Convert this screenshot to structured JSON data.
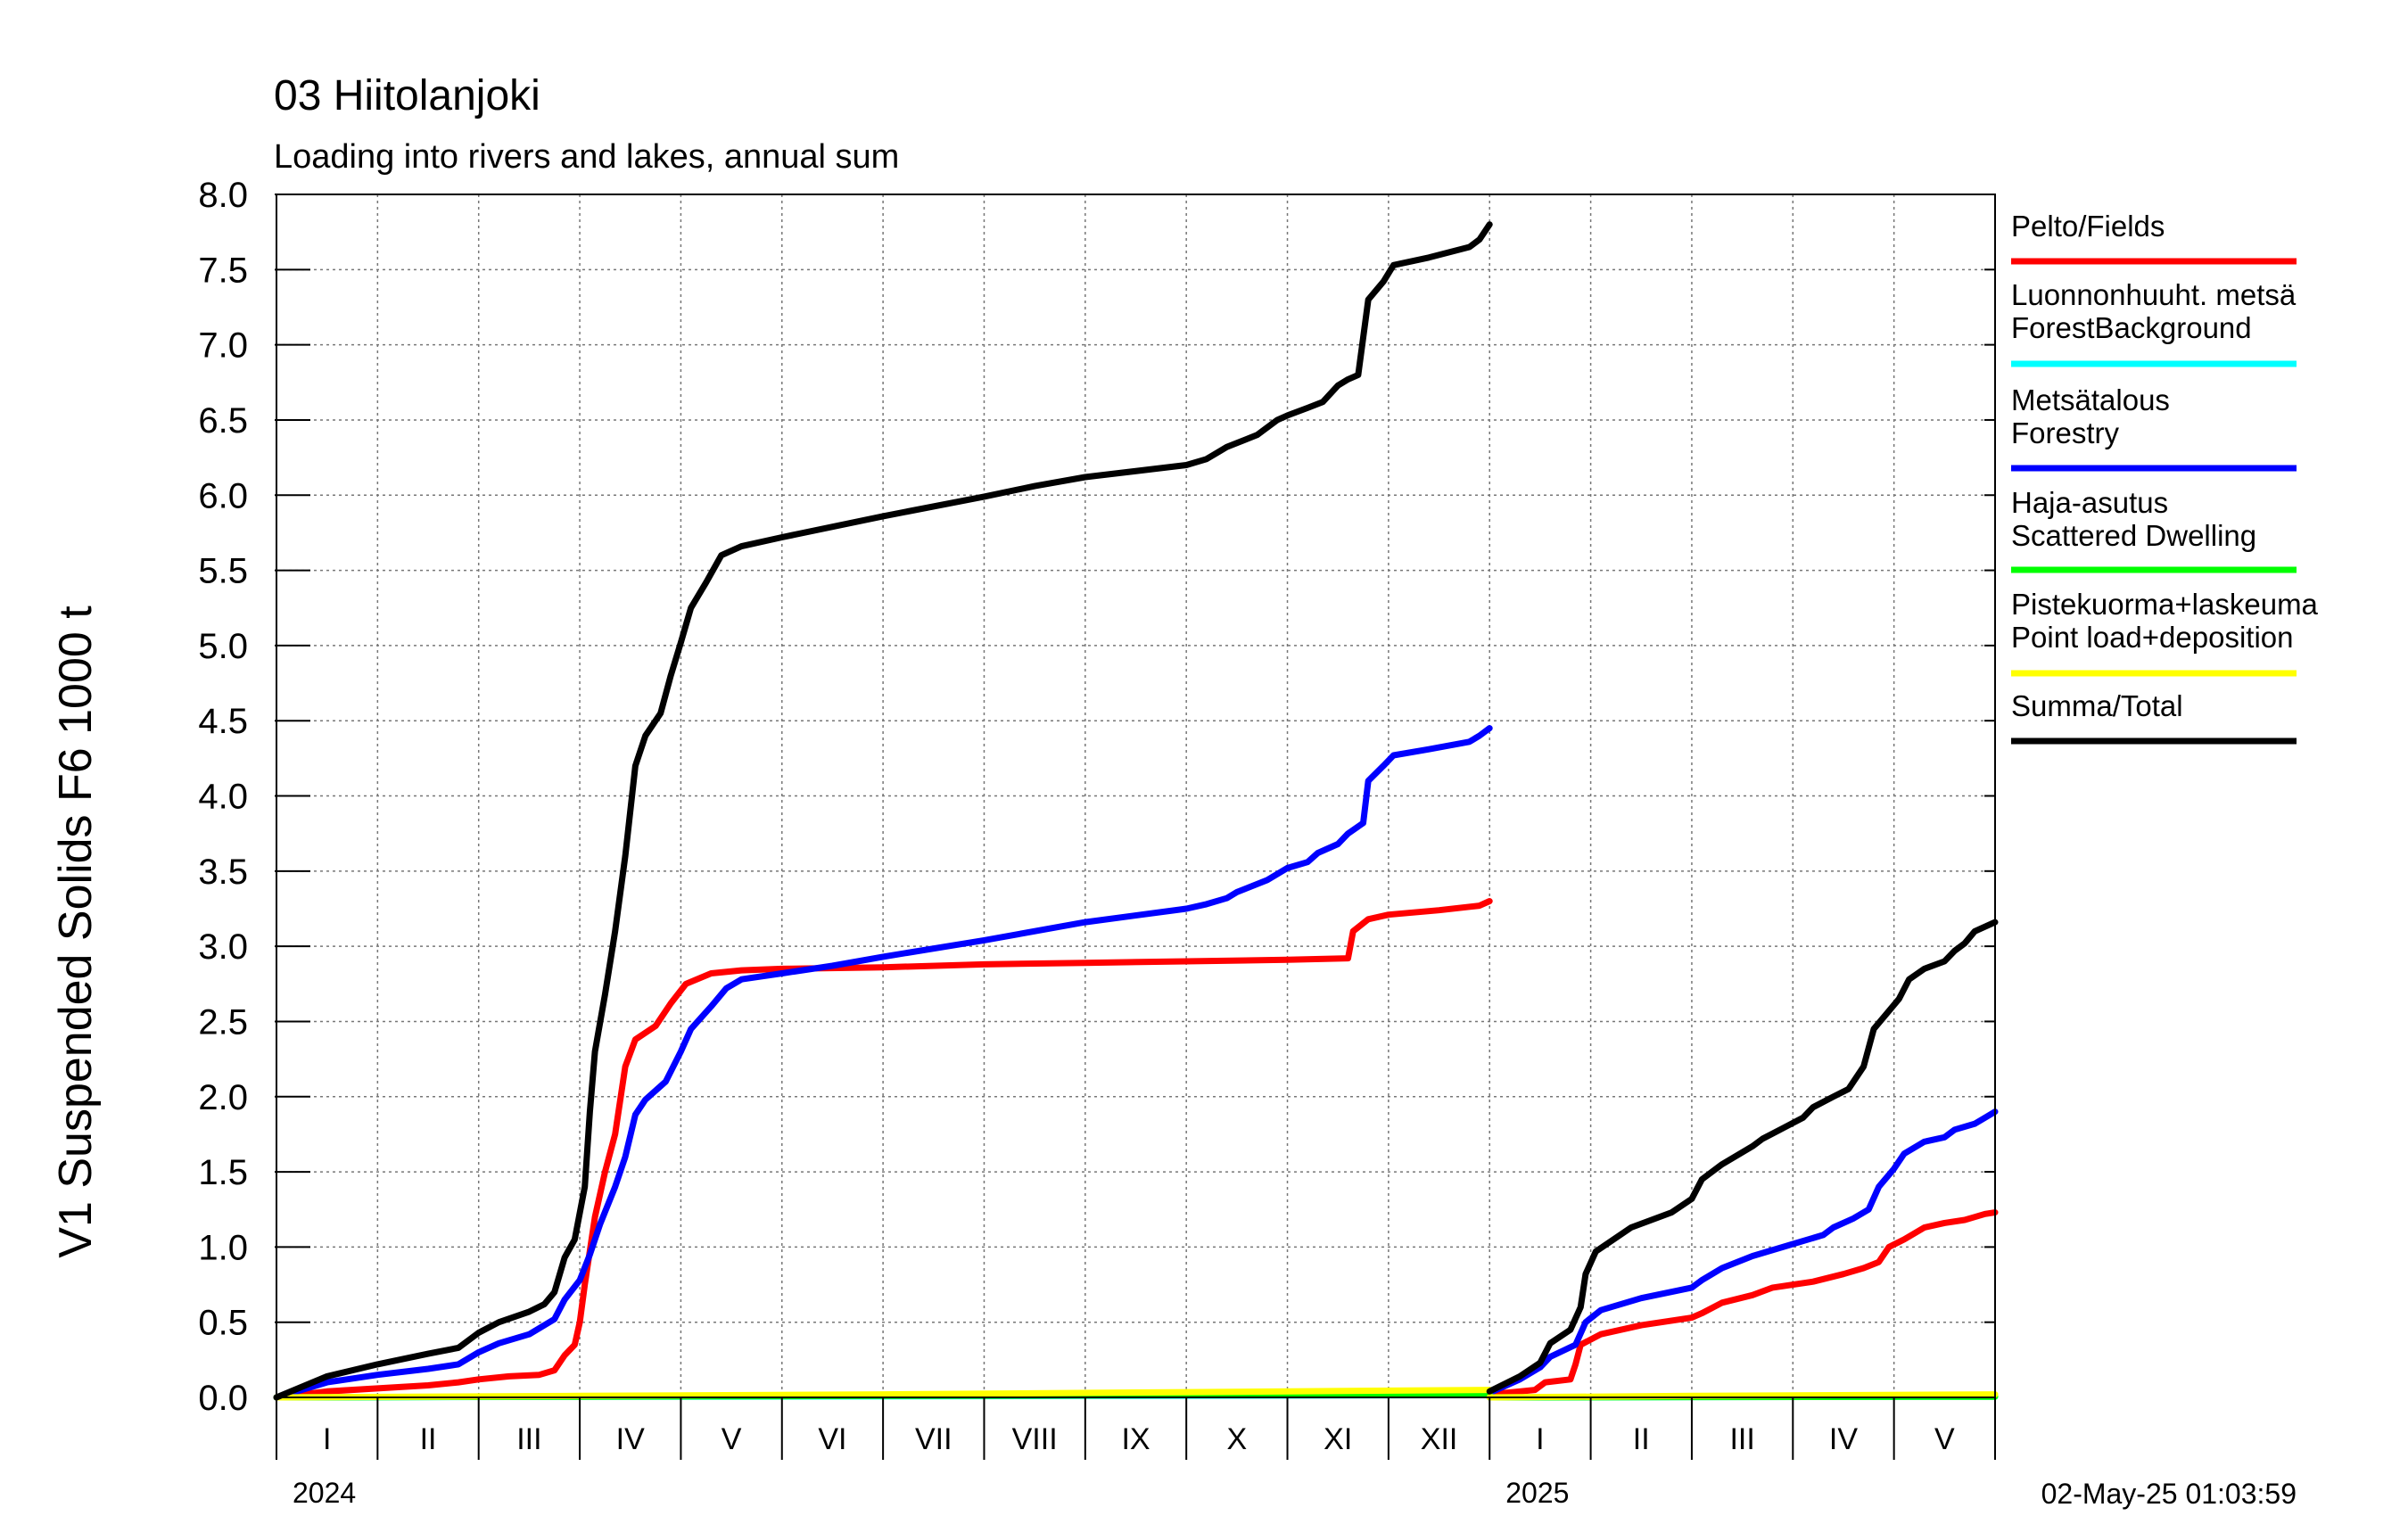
{
  "chart_data": {
    "type": "line",
    "title": "03 Hiitolanjoki",
    "subtitle": "Loading into rivers and lakes, annual sum",
    "ylabel": "V1 Suspended Solids F6 1000 t",
    "ylim": [
      0,
      8
    ],
    "yticks": [
      "0.0",
      "0.5",
      "1.0",
      "1.5",
      "2.0",
      "2.5",
      "3.0",
      "3.5",
      "4.0",
      "4.5",
      "5.0",
      "5.5",
      "6.0",
      "6.5",
      "7.0",
      "7.5",
      "8.0"
    ],
    "xlim": [
      0,
      17
    ],
    "month_labels": [
      "I",
      "II",
      "III",
      "IV",
      "V",
      "VI",
      "VII",
      "VIII",
      "IX",
      "X",
      "XI",
      "XII",
      "I",
      "II",
      "III",
      "IV",
      "V"
    ],
    "year_labels": [
      {
        "label": "2024",
        "x": 0
      },
      {
        "label": "2025",
        "x": 12
      }
    ],
    "timestamp": "02-May-25 01:03:59",
    "grid": true,
    "legend_position": "right",
    "series": [
      {
        "name": "Pelto/Fields",
        "color": "#ff0000",
        "segments": [
          [
            [
              0,
              0
            ],
            [
              0.5,
              0.04
            ],
            [
              1,
              0.06
            ],
            [
              1.5,
              0.08
            ],
            [
              1.8,
              0.1
            ],
            [
              2,
              0.12
            ],
            [
              2.3,
              0.14
            ],
            [
              2.6,
              0.15
            ],
            [
              2.75,
              0.18
            ],
            [
              2.85,
              0.28
            ],
            [
              2.95,
              0.35
            ],
            [
              3.0,
              0.5
            ],
            [
              3.05,
              0.75
            ],
            [
              3.15,
              1.2
            ],
            [
              3.25,
              1.5
            ],
            [
              3.35,
              1.75
            ],
            [
              3.45,
              2.2
            ],
            [
              3.55,
              2.38
            ],
            [
              3.75,
              2.47
            ],
            [
              3.9,
              2.62
            ],
            [
              4.05,
              2.75
            ],
            [
              4.3,
              2.82
            ],
            [
              4.6,
              2.84
            ],
            [
              5,
              2.85
            ],
            [
              6,
              2.86
            ],
            [
              7,
              2.88
            ],
            [
              8,
              2.89
            ],
            [
              9,
              2.9
            ],
            [
              10.0,
              2.91
            ],
            [
              10.6,
              2.92
            ],
            [
              10.65,
              3.1
            ],
            [
              10.8,
              3.18
            ],
            [
              11,
              3.21
            ],
            [
              11.5,
              3.24
            ],
            [
              11.9,
              3.27
            ],
            [
              12.0,
              3.3
            ]
          ],
          [
            [
              12,
              0.02
            ],
            [
              12.3,
              0.04
            ],
            [
              12.45,
              0.05
            ],
            [
              12.55,
              0.1
            ],
            [
              12.8,
              0.12
            ],
            [
              12.85,
              0.22
            ],
            [
              12.9,
              0.35
            ],
            [
              13.1,
              0.42
            ],
            [
              13.5,
              0.48
            ],
            [
              14,
              0.53
            ],
            [
              14.1,
              0.56
            ],
            [
              14.3,
              0.63
            ],
            [
              14.6,
              0.68
            ],
            [
              14.8,
              0.73
            ],
            [
              15.2,
              0.77
            ],
            [
              15.5,
              0.82
            ],
            [
              15.7,
              0.86
            ],
            [
              15.85,
              0.9
            ],
            [
              15.95,
              1.0
            ],
            [
              16.1,
              1.05
            ],
            [
              16.3,
              1.13
            ],
            [
              16.5,
              1.16
            ],
            [
              16.7,
              1.18
            ],
            [
              16.8,
              1.2
            ],
            [
              16.9,
              1.22
            ],
            [
              17,
              1.23
            ]
          ]
        ]
      },
      {
        "name": "Luonnonhuuht. metsä ForestBackground",
        "color": "#00ffff",
        "segments": [
          [
            [
              0,
              0
            ],
            [
              4,
              0.005
            ],
            [
              8,
              0.01
            ],
            [
              12,
              0.015
            ]
          ],
          [
            [
              12,
              0
            ],
            [
              17,
              0.005
            ]
          ]
        ]
      },
      {
        "name": "Metsätalous Forestry",
        "color": "#0000ff",
        "segments": [
          [
            [
              0,
              0
            ],
            [
              0.5,
              0.1
            ],
            [
              1,
              0.15
            ],
            [
              1.5,
              0.19
            ],
            [
              1.8,
              0.22
            ],
            [
              2,
              0.3
            ],
            [
              2.2,
              0.36
            ],
            [
              2.5,
              0.42
            ],
            [
              2.75,
              0.52
            ],
            [
              2.85,
              0.65
            ],
            [
              3.0,
              0.78
            ],
            [
              3.1,
              0.95
            ],
            [
              3.2,
              1.15
            ],
            [
              3.35,
              1.4
            ],
            [
              3.45,
              1.6
            ],
            [
              3.55,
              1.88
            ],
            [
              3.65,
              1.98
            ],
            [
              3.85,
              2.1
            ],
            [
              4.0,
              2.3
            ],
            [
              4.1,
              2.45
            ],
            [
              4.3,
              2.6
            ],
            [
              4.45,
              2.72
            ],
            [
              4.6,
              2.78
            ],
            [
              5,
              2.82
            ],
            [
              5.5,
              2.87
            ],
            [
              6,
              2.93
            ],
            [
              7,
              3.04
            ],
            [
              8,
              3.16
            ],
            [
              9,
              3.25
            ],
            [
              9.2,
              3.28
            ],
            [
              9.4,
              3.32
            ],
            [
              9.5,
              3.36
            ],
            [
              9.8,
              3.44
            ],
            [
              10,
              3.52
            ],
            [
              10.2,
              3.56
            ],
            [
              10.3,
              3.62
            ],
            [
              10.5,
              3.68
            ],
            [
              10.6,
              3.75
            ],
            [
              10.75,
              3.82
            ],
            [
              10.8,
              4.1
            ],
            [
              10.95,
              4.2
            ],
            [
              11.05,
              4.27
            ],
            [
              11.4,
              4.31
            ],
            [
              11.8,
              4.36
            ],
            [
              11.9,
              4.4
            ],
            [
              12,
              4.45
            ]
          ],
          [
            [
              12,
              0.03
            ],
            [
              12.3,
              0.12
            ],
            [
              12.5,
              0.2
            ],
            [
              12.6,
              0.27
            ],
            [
              12.85,
              0.35
            ],
            [
              12.95,
              0.5
            ],
            [
              13.1,
              0.58
            ],
            [
              13.5,
              0.66
            ],
            [
              14,
              0.73
            ],
            [
              14.1,
              0.78
            ],
            [
              14.3,
              0.86
            ],
            [
              14.6,
              0.94
            ],
            [
              15,
              1.02
            ],
            [
              15.3,
              1.08
            ],
            [
              15.4,
              1.13
            ],
            [
              15.6,
              1.19
            ],
            [
              15.75,
              1.25
            ],
            [
              15.85,
              1.4
            ],
            [
              16,
              1.52
            ],
            [
              16.1,
              1.62
            ],
            [
              16.3,
              1.7
            ],
            [
              16.5,
              1.73
            ],
            [
              16.6,
              1.78
            ],
            [
              16.8,
              1.82
            ],
            [
              16.9,
              1.86
            ],
            [
              17,
              1.9
            ]
          ]
        ]
      },
      {
        "name": "Haja-asutus Scattered Dwelling",
        "color": "#00ff00",
        "segments": [
          [
            [
              0,
              0
            ],
            [
              3,
              0.005
            ],
            [
              6,
              0.01
            ],
            [
              9,
              0.015
            ],
            [
              12,
              0.02
            ]
          ],
          [
            [
              12,
              0
            ],
            [
              17,
              0.005
            ]
          ]
        ]
      },
      {
        "name": "Pistekuorma+laskeuma Point load+deposition",
        "color": "#ffff00",
        "segments": [
          [
            [
              0,
              0
            ],
            [
              3,
              0.01
            ],
            [
              6,
              0.02
            ],
            [
              9,
              0.035
            ],
            [
              12,
              0.05
            ]
          ],
          [
            [
              12,
              0
            ],
            [
              14,
              0.01
            ],
            [
              17,
              0.02
            ]
          ]
        ]
      },
      {
        "name": "Summa/Total",
        "color": "#000000",
        "segments": [
          [
            [
              0,
              0
            ],
            [
              0.5,
              0.14
            ],
            [
              1,
              0.22
            ],
            [
              1.5,
              0.29
            ],
            [
              1.8,
              0.33
            ],
            [
              2,
              0.43
            ],
            [
              2.2,
              0.5
            ],
            [
              2.5,
              0.57
            ],
            [
              2.65,
              0.62
            ],
            [
              2.75,
              0.7
            ],
            [
              2.85,
              0.93
            ],
            [
              2.95,
              1.05
            ],
            [
              3.05,
              1.4
            ],
            [
              3.1,
              1.9
            ],
            [
              3.15,
              2.3
            ],
            [
              3.25,
              2.68
            ],
            [
              3.35,
              3.1
            ],
            [
              3.45,
              3.6
            ],
            [
              3.55,
              4.2
            ],
            [
              3.65,
              4.4
            ],
            [
              3.8,
              4.55
            ],
            [
              3.9,
              4.8
            ],
            [
              4.0,
              5.02
            ],
            [
              4.1,
              5.25
            ],
            [
              4.25,
              5.42
            ],
            [
              4.4,
              5.6
            ],
            [
              4.6,
              5.66
            ],
            [
              5,
              5.72
            ],
            [
              6,
              5.86
            ],
            [
              7,
              5.99
            ],
            [
              7.5,
              6.06
            ],
            [
              8,
              6.12
            ],
            [
              9,
              6.2
            ],
            [
              9.2,
              6.24
            ],
            [
              9.4,
              6.32
            ],
            [
              9.7,
              6.4
            ],
            [
              9.9,
              6.5
            ],
            [
              10,
              6.53
            ],
            [
              10.2,
              6.58
            ],
            [
              10.35,
              6.62
            ],
            [
              10.5,
              6.73
            ],
            [
              10.6,
              6.77
            ],
            [
              10.7,
              6.8
            ],
            [
              10.8,
              7.3
            ],
            [
              10.95,
              7.42
            ],
            [
              11.05,
              7.53
            ],
            [
              11.4,
              7.58
            ],
            [
              11.8,
              7.65
            ],
            [
              11.9,
              7.7
            ],
            [
              12,
              7.8
            ]
          ],
          [
            [
              12,
              0.04
            ],
            [
              12.3,
              0.14
            ],
            [
              12.5,
              0.23
            ],
            [
              12.6,
              0.36
            ],
            [
              12.8,
              0.45
            ],
            [
              12.9,
              0.6
            ],
            [
              12.95,
              0.82
            ],
            [
              13.05,
              0.97
            ],
            [
              13.4,
              1.13
            ],
            [
              13.8,
              1.23
            ],
            [
              14.0,
              1.32
            ],
            [
              14.1,
              1.45
            ],
            [
              14.3,
              1.55
            ],
            [
              14.6,
              1.67
            ],
            [
              14.7,
              1.72
            ],
            [
              14.9,
              1.79
            ],
            [
              15.1,
              1.86
            ],
            [
              15.2,
              1.93
            ],
            [
              15.4,
              2.0
            ],
            [
              15.55,
              2.05
            ],
            [
              15.7,
              2.2
            ],
            [
              15.8,
              2.45
            ],
            [
              15.95,
              2.57
            ],
            [
              16.05,
              2.65
            ],
            [
              16.15,
              2.78
            ],
            [
              16.3,
              2.85
            ],
            [
              16.5,
              2.9
            ],
            [
              16.6,
              2.97
            ],
            [
              16.7,
              3.02
            ],
            [
              16.8,
              3.1
            ],
            [
              17,
              3.16
            ]
          ]
        ]
      }
    ]
  }
}
